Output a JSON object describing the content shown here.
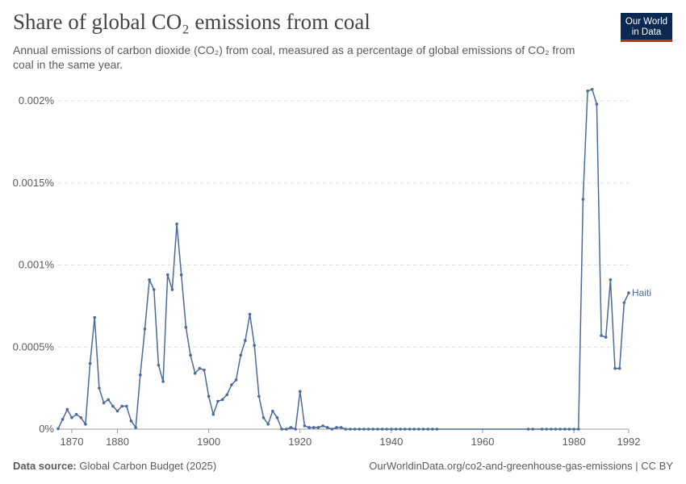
{
  "header": {
    "title": "Share of global CO₂ emissions from coal",
    "subtitle": "Annual emissions of carbon dioxide (CO₂) from coal, measured as a percentage of global emissions of CO₂ from coal in the same year."
  },
  "logo": {
    "line1": "Our World",
    "line2": "in Data"
  },
  "footer": {
    "source_label": "Data source:",
    "source_value": "Global Carbon Budget (2025)",
    "credit": "OurWorldinData.org/co2-and-greenhouse-gas-emissions | CC BY"
  },
  "colors": {
    "series": "#4c6a9c",
    "grid": "#dddddd",
    "axis": "#999999",
    "text": "#5b5b5b"
  },
  "chart_data": {
    "type": "line",
    "title": "Share of global CO₂ emissions from coal",
    "xlabel": "",
    "ylabel": "",
    "xlim": [
      1867,
      1992
    ],
    "ylim": [
      0,
      0.002
    ],
    "x_ticks": [
      1870,
      1880,
      1900,
      1920,
      1940,
      1960,
      1980,
      1992
    ],
    "x_tick_labels": [
      "1870",
      "1880",
      "1900",
      "1920",
      "1940",
      "1960",
      "1980",
      "1992"
    ],
    "y_ticks": [
      0,
      0.0005,
      0.001,
      0.0015,
      0.002
    ],
    "y_tick_labels": [
      "0%",
      "0.0005%",
      "0.001%",
      "0.0015%",
      "0.002%"
    ],
    "grid": "horizontal-dashed",
    "series": [
      {
        "name": "Haiti",
        "x": [
          1867,
          1868,
          1869,
          1870,
          1871,
          1872,
          1873,
          1874,
          1875,
          1876,
          1877,
          1878,
          1879,
          1880,
          1881,
          1882,
          1883,
          1884,
          1885,
          1886,
          1887,
          1888,
          1889,
          1890,
          1891,
          1892,
          1893,
          1894,
          1895,
          1896,
          1897,
          1898,
          1899,
          1900,
          1901,
          1902,
          1903,
          1904,
          1905,
          1906,
          1907,
          1908,
          1909,
          1910,
          1911,
          1912,
          1913,
          1914,
          1915,
          1916,
          1917,
          1918,
          1919,
          1920,
          1921,
          1922,
          1923,
          1924,
          1925,
          1926,
          1927,
          1928,
          1929,
          1930,
          1931,
          1932,
          1933,
          1934,
          1935,
          1936,
          1937,
          1938,
          1939,
          1940,
          1941,
          1942,
          1943,
          1944,
          1945,
          1946,
          1947,
          1948,
          1949,
          1950,
          1970,
          1971,
          1973,
          1974,
          1975,
          1976,
          1977,
          1978,
          1979,
          1980,
          1981,
          1982,
          1983,
          1984,
          1985,
          1986,
          1987,
          1988,
          1989,
          1990,
          1991,
          1992
        ],
        "values": [
          3e-06,
          6e-05,
          0.00012,
          7e-05,
          9e-05,
          7e-05,
          3e-05,
          0.0004,
          0.00068,
          0.00025,
          0.00016,
          0.00018,
          0.00014,
          0.00011,
          0.00014,
          0.00014,
          5e-05,
          1e-05,
          0.00033,
          0.00061,
          0.00091,
          0.00085,
          0.00039,
          0.00029,
          0.00094,
          0.00085,
          0.00125,
          0.00094,
          0.00062,
          0.00045,
          0.00034,
          0.00037,
          0.00036,
          0.0002,
          9e-05,
          0.00017,
          0.00018,
          0.00021,
          0.00027,
          0.0003,
          0.00045,
          0.00054,
          0.0007,
          0.00051,
          0.0002,
          7e-05,
          3e-05,
          0.00011,
          7e-05,
          0,
          0,
          1e-05,
          0,
          0.00023,
          2e-05,
          1e-05,
          1e-05,
          1e-05,
          2e-05,
          1e-05,
          0,
          1e-05,
          1e-05,
          0,
          0,
          0,
          0,
          0,
          0,
          0,
          0,
          0,
          0,
          0,
          0,
          0,
          0,
          0,
          0,
          0,
          0,
          0,
          0,
          0,
          0,
          0,
          0,
          0,
          0,
          0,
          0,
          0,
          0,
          0,
          0,
          0.0014,
          0.00206,
          0.00207,
          0.00198,
          0.00057,
          0.00056,
          0.00091,
          0.00037,
          0.00037,
          0.00077,
          0.00083
        ],
        "end_label": "Haiti"
      }
    ]
  }
}
